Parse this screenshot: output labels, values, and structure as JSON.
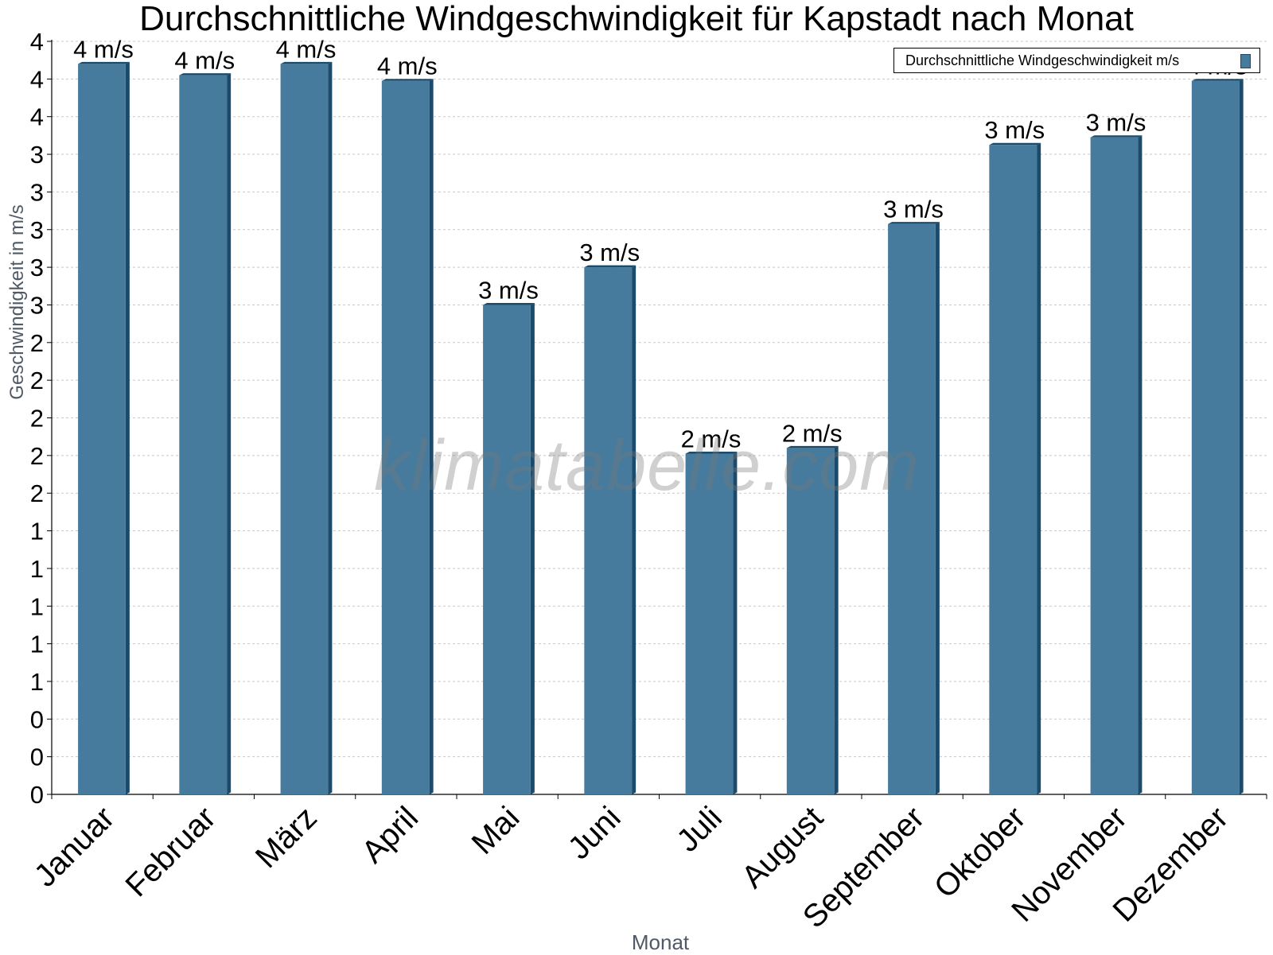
{
  "chart_data": {
    "type": "bar",
    "title": "Durchschnittliche Windgeschwindigkeit für Kapstadt nach Monat",
    "xlabel": "Monat",
    "ylabel": "Geschwindigkeit in m/s",
    "watermark": "klimatabelle.com",
    "legend": {
      "label": "Durchschnittliche Windgeschwindigkeit m/s",
      "placement": "top-right"
    },
    "categories": [
      "Januar",
      "Februar",
      "März",
      "April",
      "Mai",
      "Juni",
      "Juli",
      "August",
      "September",
      "Oktober",
      "November",
      "Dezember"
    ],
    "series": [
      {
        "name": "Durchschnittliche Windgeschwindigkeit m/s",
        "values": [
          3.88,
          3.82,
          3.88,
          3.79,
          2.6,
          2.8,
          1.81,
          1.84,
          3.03,
          3.45,
          3.49,
          3.79
        ],
        "labels": [
          "4 m/s",
          "4 m/s",
          "4 m/s",
          "4 m/s",
          "3 m/s",
          "3 m/s",
          "2 m/s",
          "2 m/s",
          "3 m/s",
          "3 m/s",
          "3 m/s",
          "4 m/s"
        ]
      }
    ],
    "yticks": [
      0,
      0.2,
      0.4,
      0.6,
      0.8,
      1.0,
      1.2,
      1.4,
      1.6,
      1.8,
      2.0,
      2.2,
      2.4,
      2.6,
      2.8,
      3.0,
      3.2,
      3.4,
      3.6,
      3.8,
      4.0
    ],
    "ytick_labels": [
      "0",
      "0",
      "0",
      "1",
      "1",
      "1",
      "1",
      "1",
      "2",
      "2",
      "2",
      "2",
      "2",
      "3",
      "3",
      "3",
      "3",
      "3",
      "4",
      "4",
      "4"
    ],
    "ylim": [
      0,
      4.0
    ],
    "grid": true,
    "colors": {
      "bar": "#467b9e",
      "bar_dark": "#1b4a6b",
      "grid": "#c8c8c8",
      "axis_title": "#505a66"
    }
  }
}
